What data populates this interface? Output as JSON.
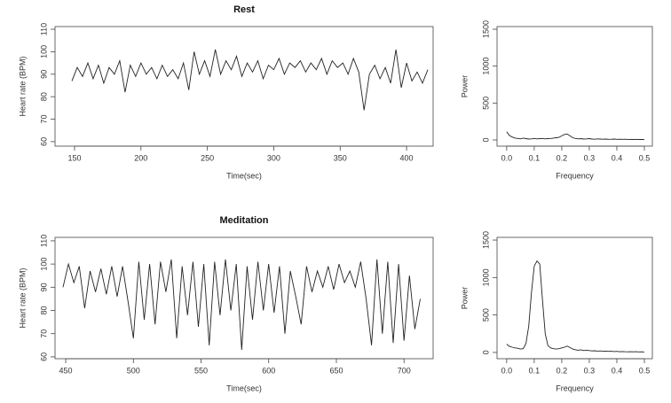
{
  "chart_data": [
    {
      "type": "line",
      "title": "Rest",
      "x_label": "Time(sec)",
      "y_label": "Heart rate (BPM)",
      "color": "#222222",
      "x": [
        148,
        152,
        156,
        160,
        164,
        168,
        172,
        176,
        180,
        184,
        188,
        192,
        196,
        200,
        204,
        208,
        212,
        216,
        220,
        224,
        228,
        232,
        236,
        240,
        244,
        248,
        252,
        256,
        260,
        264,
        268,
        272,
        276,
        280,
        284,
        288,
        292,
        296,
        300,
        304,
        308,
        312,
        316,
        320,
        324,
        328,
        332,
        336,
        340,
        344,
        348,
        352,
        356,
        360,
        364,
        368,
        372,
        376,
        380,
        384,
        388,
        392,
        396,
        400,
        404,
        408,
        412,
        416
      ],
      "values": [
        87,
        93,
        89,
        95,
        88,
        94,
        86,
        93,
        90,
        96,
        82,
        94,
        89,
        95,
        90,
        93,
        88,
        94,
        89,
        92,
        88,
        95,
        83,
        100,
        90,
        96,
        89,
        101,
        90,
        96,
        92,
        98,
        89,
        95,
        91,
        96,
        88,
        94,
        92,
        97,
        90,
        95,
        93,
        96,
        91,
        95,
        92,
        97,
        90,
        96,
        93,
        95,
        90,
        97,
        91,
        74,
        90,
        94,
        88,
        93,
        86,
        101,
        84,
        95,
        87,
        91,
        86,
        92
      ],
      "xlim": [
        135.3,
        420
      ],
      "ylim": [
        58,
        111.2
      ],
      "xticks": [
        150,
        200,
        250,
        300,
        350,
        400
      ],
      "yticks": [
        60,
        70,
        80,
        90,
        100,
        110
      ]
    },
    {
      "type": "line",
      "x_label": "Frequency",
      "y_label": "Power",
      "color": "#222222",
      "x": [
        0,
        0.01,
        0.02,
        0.03,
        0.04,
        0.05,
        0.06,
        0.07,
        0.08,
        0.09,
        0.1,
        0.11,
        0.12,
        0.13,
        0.14,
        0.15,
        0.16,
        0.17,
        0.18,
        0.19,
        0.2,
        0.21,
        0.22,
        0.23,
        0.24,
        0.25,
        0.26,
        0.27,
        0.28,
        0.29,
        0.3,
        0.31,
        0.32,
        0.33,
        0.34,
        0.35,
        0.36,
        0.37,
        0.38,
        0.39,
        0.4,
        0.41,
        0.42,
        0.43,
        0.44,
        0.45,
        0.46,
        0.47,
        0.48,
        0.49,
        0.5
      ],
      "values": [
        110,
        60,
        40,
        25,
        20,
        15,
        25,
        18,
        12,
        15,
        20,
        15,
        18,
        20,
        15,
        18,
        20,
        25,
        30,
        35,
        55,
        75,
        80,
        55,
        30,
        20,
        15,
        18,
        12,
        15,
        18,
        12,
        10,
        15,
        12,
        10,
        12,
        8,
        10,
        12,
        8,
        10,
        8,
        10,
        7,
        8,
        6,
        8,
        6,
        7,
        5
      ],
      "xlim": [
        -0.035,
        0.529
      ],
      "ylim": [
        -84,
        1536
      ],
      "xticks": [
        {
          "value": 0,
          "label": "0.0"
        },
        0.1,
        0.2,
        0.3,
        0.4,
        0.5
      ],
      "yticks": [
        0,
        500,
        1000,
        1500
      ]
    },
    {
      "type": "line",
      "title": "Meditation",
      "x_label": "Time(sec)",
      "y_label": "Heart rate (BPM)",
      "color": "#222222",
      "x": [
        448,
        452,
        456,
        460,
        464,
        468,
        472,
        476,
        480,
        484,
        488,
        492,
        496,
        500,
        504,
        508,
        512,
        516,
        520,
        524,
        528,
        532,
        536,
        540,
        544,
        548,
        552,
        556,
        560,
        564,
        568,
        572,
        576,
        580,
        584,
        588,
        592,
        596,
        600,
        604,
        608,
        612,
        616,
        620,
        624,
        628,
        632,
        636,
        640,
        644,
        648,
        652,
        656,
        660,
        664,
        668,
        672,
        676,
        680,
        684,
        688,
        692,
        696,
        700,
        704,
        708,
        712
      ],
      "values": [
        90,
        100,
        92,
        99,
        81,
        97,
        88,
        98,
        87,
        99,
        86,
        99,
        84,
        68,
        101,
        76,
        100,
        74,
        101,
        88,
        102,
        68,
        99,
        78,
        101,
        73,
        100,
        65,
        101,
        78,
        102,
        80,
        100,
        63,
        99,
        76,
        101,
        80,
        100,
        79,
        99,
        70,
        97,
        86,
        74,
        99,
        88,
        97,
        90,
        99,
        89,
        100,
        92,
        97,
        90,
        101,
        85,
        65,
        102,
        70,
        101,
        66,
        100,
        67,
        95,
        72,
        85
      ],
      "xlim": [
        442.1,
        721.5
      ],
      "ylim": [
        59.2,
        111.5
      ],
      "xticks": [
        450,
        500,
        550,
        600,
        650,
        700
      ],
      "yticks": [
        60,
        70,
        80,
        90,
        100,
        110
      ]
    },
    {
      "type": "line",
      "x_label": "Frequency",
      "y_label": "Power",
      "color": "#222222",
      "x": [
        0,
        0.01,
        0.02,
        0.03,
        0.04,
        0.05,
        0.06,
        0.07,
        0.08,
        0.09,
        0.1,
        0.11,
        0.12,
        0.13,
        0.14,
        0.15,
        0.16,
        0.17,
        0.18,
        0.19,
        0.2,
        0.21,
        0.22,
        0.23,
        0.24,
        0.25,
        0.26,
        0.27,
        0.28,
        0.29,
        0.3,
        0.31,
        0.32,
        0.33,
        0.34,
        0.35,
        0.36,
        0.37,
        0.38,
        0.39,
        0.4,
        0.41,
        0.42,
        0.43,
        0.44,
        0.45,
        0.46,
        0.47,
        0.48,
        0.49,
        0.5
      ],
      "values": [
        110,
        80,
        70,
        60,
        55,
        45,
        50,
        120,
        350,
        800,
        1150,
        1220,
        1180,
        700,
        250,
        90,
        60,
        50,
        45,
        50,
        60,
        70,
        85,
        65,
        45,
        35,
        30,
        35,
        25,
        30,
        25,
        20,
        22,
        18,
        20,
        15,
        18,
        14,
        15,
        12,
        14,
        10,
        12,
        10,
        8,
        10,
        8,
        9,
        7,
        8,
        6
      ],
      "xlim": [
        -0.035,
        0.529
      ],
      "ylim": [
        -84,
        1536
      ],
      "xticks": [
        {
          "value": 0,
          "label": "0.0"
        },
        0.1,
        0.2,
        0.3,
        0.4,
        0.5
      ],
      "yticks": [
        0,
        500,
        1000,
        1500
      ]
    }
  ]
}
